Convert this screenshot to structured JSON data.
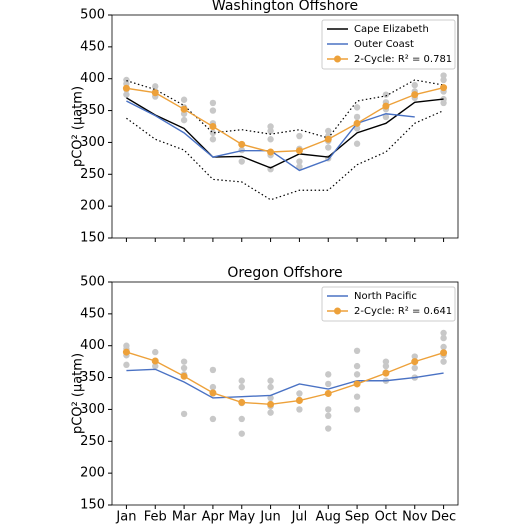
{
  "chart_data": [
    {
      "type": "line",
      "title": "Washington Offshore",
      "ylabel": "pCO² (µatm)",
      "ylim": [
        150,
        500
      ],
      "yticks": [
        150,
        200,
        250,
        300,
        350,
        400,
        450,
        500
      ],
      "series": [
        {
          "name": "Cape Elizabeth",
          "color": "#000000",
          "values": [
            370,
            343,
            322,
            277,
            278,
            260,
            282,
            277,
            315,
            330,
            363,
            368
          ]
        },
        {
          "name": "Outer Coast",
          "color": "#4a72c4",
          "values": [
            365,
            342,
            315,
            277,
            287,
            287,
            256,
            273,
            330,
            345,
            340,
            null
          ]
        },
        {
          "name": "2-Cycle: R² = 0.781",
          "color": "#eda13a",
          "marker": true,
          "values": [
            385,
            378,
            352,
            325,
            297,
            285,
            287,
            305,
            330,
            357,
            375,
            386
          ]
        }
      ],
      "envelope": {
        "color": "#000000",
        "upper": [
          397,
          383,
          358,
          315,
          320,
          313,
          320,
          307,
          365,
          373,
          398,
          390
        ],
        "lower": [
          338,
          305,
          288,
          242,
          238,
          210,
          225,
          225,
          265,
          285,
          330,
          350
        ]
      },
      "points": {
        "color": "#c8c8c8",
        "x": [
          0,
          0,
          0,
          0,
          1,
          1,
          1,
          2,
          2,
          2,
          2,
          3,
          3,
          3,
          3,
          3,
          4,
          4,
          4,
          5,
          5,
          5,
          5,
          5,
          6,
          6,
          6,
          6,
          7,
          7,
          7,
          7,
          7,
          8,
          8,
          8,
          8,
          9,
          9,
          9,
          9,
          10,
          10,
          10,
          11,
          11,
          11,
          11,
          11
        ],
        "y": [
          398,
          392,
          383,
          375,
          388,
          380,
          372,
          367,
          355,
          345,
          335,
          362,
          350,
          330,
          315,
          305,
          297,
          288,
          270,
          325,
          318,
          305,
          280,
          258,
          310,
          290,
          270,
          262,
          318,
          310,
          302,
          292,
          275,
          355,
          340,
          322,
          298,
          375,
          363,
          352,
          340,
          390,
          380,
          370,
          405,
          398,
          380,
          368,
          362
        ]
      },
      "legend": "upper right"
    },
    {
      "type": "line",
      "title": "Oregon Offshore",
      "ylabel": "pCO² (µatm)",
      "categories": [
        "Jan",
        "Feb",
        "Mar",
        "Apr",
        "May",
        "Jun",
        "Jul",
        "Aug",
        "Sep",
        "Oct",
        "Nov",
        "Dec"
      ],
      "ylim": [
        150,
        500
      ],
      "yticks": [
        150,
        200,
        250,
        300,
        350,
        400,
        450,
        500
      ],
      "series": [
        {
          "name": "North Pacific",
          "color": "#4a72c4",
          "values": [
            361,
            363,
            343,
            318,
            320,
            322,
            340,
            332,
            345,
            345,
            350,
            357
          ]
        },
        {
          "name": "2-Cycle: R² = 0.641",
          "color": "#eda13a",
          "marker": true,
          "values": [
            390,
            376,
            352,
            326,
            311,
            308,
            314,
            325,
            340,
            357,
            375,
            389
          ]
        }
      ],
      "points": {
        "color": "#c8c8c8",
        "x": [
          0,
          0,
          0,
          0,
          1,
          1,
          1,
          2,
          2,
          2,
          2,
          3,
          3,
          3,
          3,
          4,
          4,
          4,
          4,
          4,
          5,
          5,
          5,
          5,
          5,
          6,
          6,
          6,
          7,
          7,
          7,
          7,
          7,
          8,
          8,
          8,
          8,
          8,
          9,
          9,
          9,
          9,
          10,
          10,
          10,
          10,
          11,
          11,
          11,
          11,
          11
        ],
        "y": [
          400,
          395,
          385,
          370,
          390,
          375,
          368,
          375,
          365,
          355,
          293,
          362,
          335,
          325,
          285,
          345,
          335,
          310,
          285,
          262,
          345,
          335,
          318,
          305,
          295,
          325,
          315,
          300,
          355,
          340,
          300,
          290,
          270,
          392,
          368,
          355,
          320,
          300,
          375,
          368,
          358,
          345,
          383,
          375,
          365,
          350,
          420,
          412,
          398,
          385,
          375
        ]
      },
      "legend": "upper right"
    }
  ]
}
